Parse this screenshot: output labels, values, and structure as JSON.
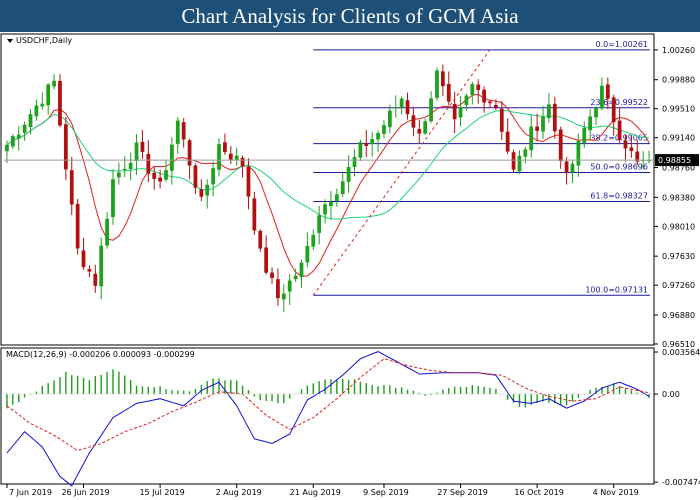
{
  "banner": {
    "title": "Chart Analysis for Clients of GCM Asia"
  },
  "chart_data": [
    {
      "type": "candlestick",
      "symbol_label": "USDCHF,Daily",
      "ylim": [
        0.9651,
        1.0045
      ],
      "y_ticks": [
        "1.00260",
        "0.99880",
        "0.99510",
        "0.99140",
        "0.98760",
        "0.98380",
        "0.98010",
        "0.97630",
        "0.97260",
        "0.96880",
        "0.96510"
      ],
      "current_price": {
        "value": 0.98855,
        "label": "0.98855"
      },
      "fibonacci": [
        {
          "label": "0.0=1.00261",
          "value": 1.00261
        },
        {
          "label": "23.6=0.99522",
          "value": 0.99522
        },
        {
          "label": "38.2=0.99065",
          "value": 0.99065
        },
        {
          "label": "50.0=0.98696",
          "value": 0.98696
        },
        {
          "label": "61.8=0.98327",
          "value": 0.98327
        },
        {
          "label": "100.0=0.97131",
          "value": 0.97131
        }
      ],
      "x_labels": [
        "7 Jun 2019",
        "26 Jun 2019",
        "15 Jul 2019",
        "2 Aug 2019",
        "21 Aug 2019",
        "9 Sep 2019",
        "27 Sep 2019",
        "16 Oct 2019",
        "4 Nov 2019"
      ],
      "candle_count": 110,
      "candle_keypoints": [
        [
          0,
          0.9905
        ],
        [
          4,
          0.9945
        ],
        [
          8,
          0.9985
        ],
        [
          12,
          0.977
        ],
        [
          15,
          0.973
        ],
        [
          18,
          0.986
        ],
        [
          22,
          0.99
        ],
        [
          26,
          0.985
        ],
        [
          29,
          0.9935
        ],
        [
          33,
          0.983
        ],
        [
          36,
          0.9905
        ],
        [
          40,
          0.988
        ],
        [
          43,
          0.9765
        ],
        [
          46,
          0.971
        ],
        [
          50,
          0.975
        ],
        [
          53,
          0.982
        ],
        [
          57,
          0.986
        ],
        [
          60,
          0.99
        ],
        [
          63,
          0.992
        ],
        [
          67,
          0.9965
        ],
        [
          70,
          0.9915
        ],
        [
          73,
          0.9995
        ],
        [
          76,
          0.993
        ],
        [
          79,
          0.998
        ],
        [
          83,
          0.9955
        ],
        [
          86,
          0.987
        ],
        [
          89,
          0.992
        ],
        [
          92,
          0.9955
        ],
        [
          95,
          0.986
        ],
        [
          98,
          0.9925
        ],
        [
          101,
          0.9975
        ],
        [
          104,
          0.992
        ],
        [
          107,
          0.988
        ],
        [
          109,
          0.98855
        ]
      ],
      "ma_fast_color": "#e02020",
      "ma_slow_color": "#20d27a",
      "bull_color": "#1fa01f",
      "bear_color": "#b01010",
      "fib_color": "#1a1a9e"
    },
    {
      "type": "macd",
      "label": "MACD(12,26,9) -0.000206 0.000093 -0.000299",
      "ylim": [
        -0.00755,
        0.00382
      ],
      "y_ticks": [
        "0.003564",
        "0.00",
        "-0.007474"
      ],
      "histogram_keypoints": [
        [
          0,
          -0.0012
        ],
        [
          5,
          0.0003
        ],
        [
          10,
          0.0018
        ],
        [
          14,
          0.0012
        ],
        [
          18,
          0.0022
        ],
        [
          22,
          0.0008
        ],
        [
          27,
          0.0005
        ],
        [
          31,
          0.0002
        ],
        [
          35,
          0.0014
        ],
        [
          39,
          0.0011
        ],
        [
          43,
          -0.0006
        ],
        [
          47,
          -0.0007
        ],
        [
          51,
          0.0007
        ],
        [
          55,
          0.0013
        ],
        [
          59,
          0.0012
        ],
        [
          63,
          0.0007
        ],
        [
          67,
          0.0006
        ],
        [
          71,
          -0.0002
        ],
        [
          75,
          0.0005
        ],
        [
          79,
          0.0007
        ],
        [
          83,
          0.0004
        ],
        [
          87,
          -0.0012
        ],
        [
          91,
          -0.0006
        ],
        [
          95,
          -0.0009
        ],
        [
          99,
          0.0004
        ],
        [
          103,
          0.0009
        ],
        [
          107,
          0.0002
        ],
        [
          109,
          -0.0003
        ]
      ],
      "macd_keypoints": [
        [
          0,
          -0.005
        ],
        [
          3,
          -0.0032
        ],
        [
          6,
          -0.0045
        ],
        [
          9,
          -0.007
        ],
        [
          11,
          -0.0078
        ],
        [
          14,
          -0.005
        ],
        [
          18,
          -0.002
        ],
        [
          22,
          -0.0008
        ],
        [
          26,
          -0.0004
        ],
        [
          30,
          -0.001
        ],
        [
          33,
          0.0003
        ],
        [
          36,
          0.001
        ],
        [
          39,
          -0.001
        ],
        [
          42,
          -0.0038
        ],
        [
          45,
          -0.0042
        ],
        [
          48,
          -0.0034
        ],
        [
          51,
          -0.0005
        ],
        [
          54,
          0.0004
        ],
        [
          57,
          0.0016
        ],
        [
          60,
          0.003
        ],
        [
          63,
          0.0036
        ],
        [
          66,
          0.0028
        ],
        [
          70,
          0.0017
        ],
        [
          74,
          0.0018
        ],
        [
          77,
          0.0018
        ],
        [
          80,
          0.0018
        ],
        [
          83,
          0.0016
        ],
        [
          86,
          -0.0006
        ],
        [
          89,
          -0.0008
        ],
        [
          92,
          -0.0004
        ],
        [
          95,
          -0.0012
        ],
        [
          98,
          -0.0006
        ],
        [
          101,
          0.0005
        ],
        [
          104,
          0.001
        ],
        [
          107,
          0.0004
        ],
        [
          109,
          -0.0002
        ]
      ],
      "signal_keypoints": [
        [
          0,
          -0.001
        ],
        [
          4,
          -0.0025
        ],
        [
          8,
          -0.0035
        ],
        [
          12,
          -0.0048
        ],
        [
          16,
          -0.0042
        ],
        [
          20,
          -0.0032
        ],
        [
          24,
          -0.0025
        ],
        [
          28,
          -0.0015
        ],
        [
          32,
          -0.0007
        ],
        [
          36,
          0.0002
        ],
        [
          40,
          0.0
        ],
        [
          44,
          -0.0018
        ],
        [
          48,
          -0.003
        ],
        [
          52,
          -0.002
        ],
        [
          56,
          -0.0004
        ],
        [
          60,
          0.0014
        ],
        [
          64,
          0.003
        ],
        [
          68,
          0.0024
        ],
        [
          72,
          0.002
        ],
        [
          76,
          0.0018
        ],
        [
          80,
          0.0018
        ],
        [
          84,
          0.0016
        ],
        [
          88,
          0.0005
        ],
        [
          92,
          -0.0002
        ],
        [
          96,
          -0.0006
        ],
        [
          100,
          -0.0004
        ],
        [
          104,
          0.0006
        ],
        [
          107,
          0.0003
        ],
        [
          109,
          0.0001
        ]
      ],
      "macd_color": "#1010d8",
      "signal_color": "#e02020",
      "hist_color": "#1f9a1f"
    }
  ]
}
